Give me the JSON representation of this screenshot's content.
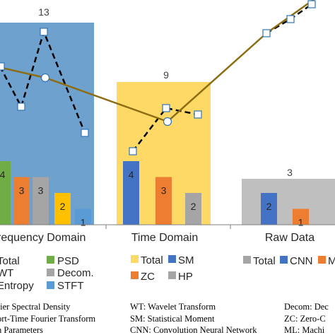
{
  "chart_data": {
    "type": "bar",
    "title": "",
    "xlabel": "",
    "ylabel": "",
    "colors": {
      "freq_bg": "#6fa1cf",
      "time_bg": "#ffd966",
      "raw_bg": "#bfbfbf",
      "axis": "#7f7f7f",
      "total_line": "#8c6d13",
      "dash_line": "#000000",
      "marker_fill": "#ffffff",
      "marker_edge": "#2e75b6"
    },
    "groups": [
      {
        "name": "requency Domain",
        "total": 13,
        "total_label": "13",
        "bars": [
          {
            "label": "4",
            "value": 4,
            "color": "#70ad47"
          },
          {
            "label": "3",
            "value": 3,
            "color": "#ed7d31"
          },
          {
            "label": "3",
            "value": 3,
            "color": "#a5a5a5"
          },
          {
            "label": "2",
            "value": 2,
            "color": "#ffc000"
          },
          {
            "label": "1",
            "value": 1,
            "color": "#5b9bd5"
          }
        ]
      },
      {
        "name": "Time Domain",
        "total": 9,
        "total_label": "9",
        "bars": [
          {
            "label": "4",
            "value": 4,
            "color": "#4472c4"
          },
          {
            "label": "3",
            "value": 3,
            "color": "#ed7d31"
          },
          {
            "label": "2",
            "value": 2,
            "color": "#a5a5a5"
          }
        ]
      },
      {
        "name": "Raw Data",
        "total": 3,
        "total_label": "3",
        "bars": [
          {
            "label": "2",
            "value": 2,
            "color": "#4472c4"
          },
          {
            "label": "1",
            "value": 1,
            "color": "#ed7d31"
          }
        ]
      }
    ],
    "total_line": {
      "name": "Total",
      "values": [
        13,
        9,
        3
      ]
    },
    "legends": [
      {
        "entries": [
          {
            "text": "Total",
            "color": "#6fa1cf",
            "kind": "square"
          },
          {
            "text": "PSD",
            "color": "#70ad47",
            "kind": "square"
          },
          {
            "text": "WT",
            "color": "#ed7d31",
            "kind": "square"
          },
          {
            "text": "Decom.",
            "color": "#a5a5a5",
            "kind": "square"
          },
          {
            "text": "Entropy",
            "color": "#ffc000",
            "kind": "square"
          },
          {
            "text": "STFT",
            "color": "#5b9bd5",
            "kind": "square"
          }
        ]
      },
      {
        "entries": [
          {
            "text": "Total",
            "color": "#ffd966",
            "kind": "square"
          },
          {
            "text": "SM",
            "color": "#4472c4",
            "kind": "square"
          },
          {
            "text": "ZC",
            "color": "#ed7d31",
            "kind": "square"
          },
          {
            "text": "HP",
            "color": "#a5a5a5",
            "kind": "square"
          }
        ]
      },
      {
        "entries": [
          {
            "text": "Total",
            "color": "#a5a5a5",
            "kind": "square"
          },
          {
            "text": "CNN",
            "color": "#4472c4",
            "kind": "square"
          },
          {
            "text": "M",
            "color": "#ed7d31",
            "kind": "square"
          }
        ]
      }
    ],
    "footnotes": [
      "rier Spectral Density",
      "ort-Time Fourier Transform",
      "n Parameters",
      "WT: Wavelet Transform",
      "SM: Statistical Moment",
      "CNN: Convolution Neural Network",
      "Decom: Dec",
      "ZC: Zero-C",
      "ML: Machi"
    ]
  }
}
